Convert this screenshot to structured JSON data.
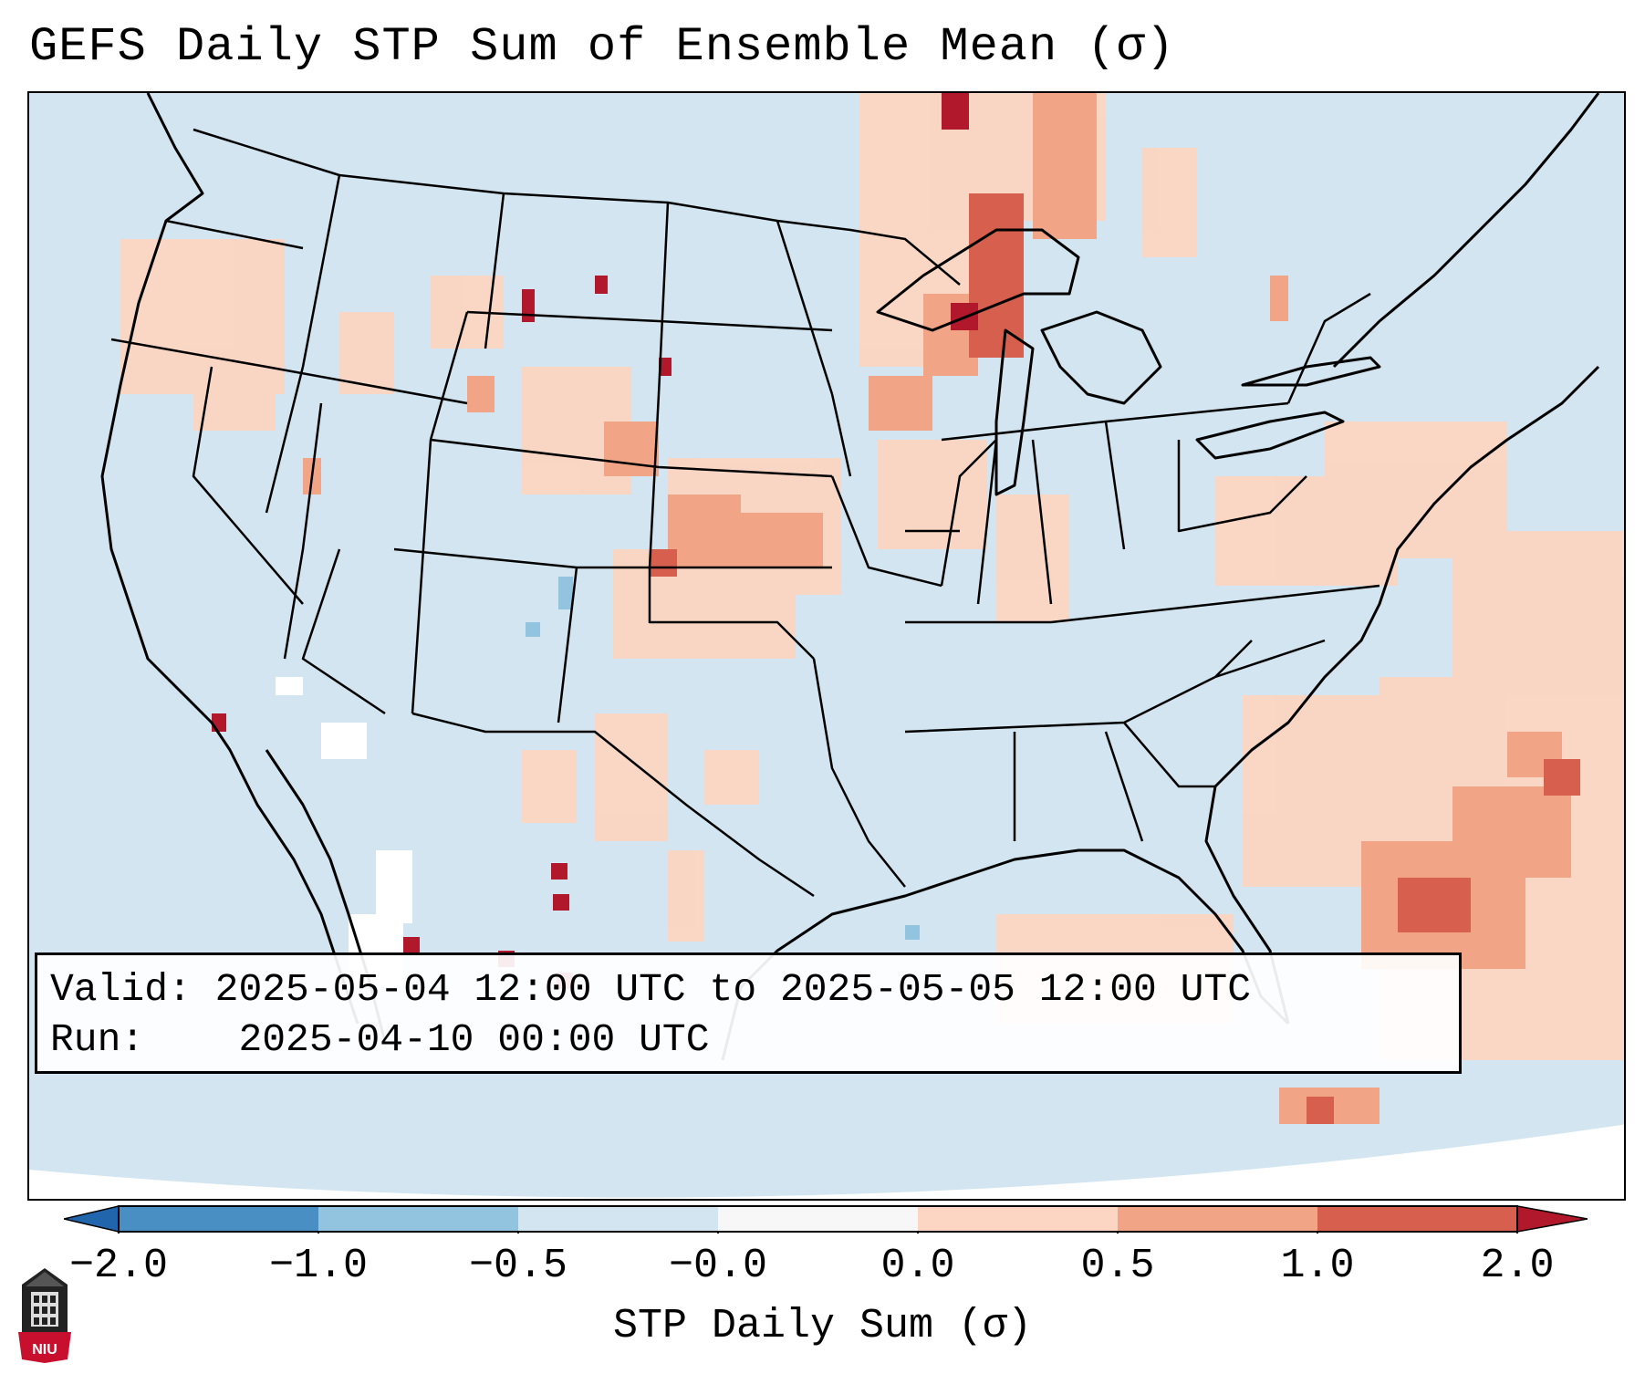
{
  "title": "GEFS Daily STP Sum of Ensemble Mean (σ)",
  "info": {
    "valid_label": "Valid:",
    "valid_value": "2025-05-04 12:00 UTC to 2025-05-05 12:00 UTC",
    "run_label": "Run:",
    "run_value": "2025-04-10 00:00 UTC"
  },
  "colorbar": {
    "label": "STP Daily Sum (σ)",
    "ticks": [
      "−2.0",
      "−1.0",
      "−0.5",
      "−0.0",
      "0.0",
      "0.5",
      "1.0",
      "2.0"
    ],
    "colors": [
      "#4a8fc4",
      "#92c3df",
      "#d2e5f0",
      "#f7f7f7",
      "#fcd6c2",
      "#f1a586",
      "#d6604d",
      "#b2182b"
    ]
  },
  "logo_text": "NIU",
  "map": {
    "projection": "Lambert conformal, contiguous United States",
    "features": [
      "state-borders",
      "coastlines",
      "country-borders",
      "great-lakes"
    ],
    "highlight_regions": [
      "Upper Midwest / Lake Superior corridor (up to 1.0–2.0σ)",
      "Central Plains: Nebraska, Kansas, Colorado (0.0–1.0σ)",
      "Western Atlantic offshore of the Carolinas and Florida (0.5–2.0σ)",
      "Southern Ontario / Quebec (0.0–1.0σ)"
    ]
  }
}
